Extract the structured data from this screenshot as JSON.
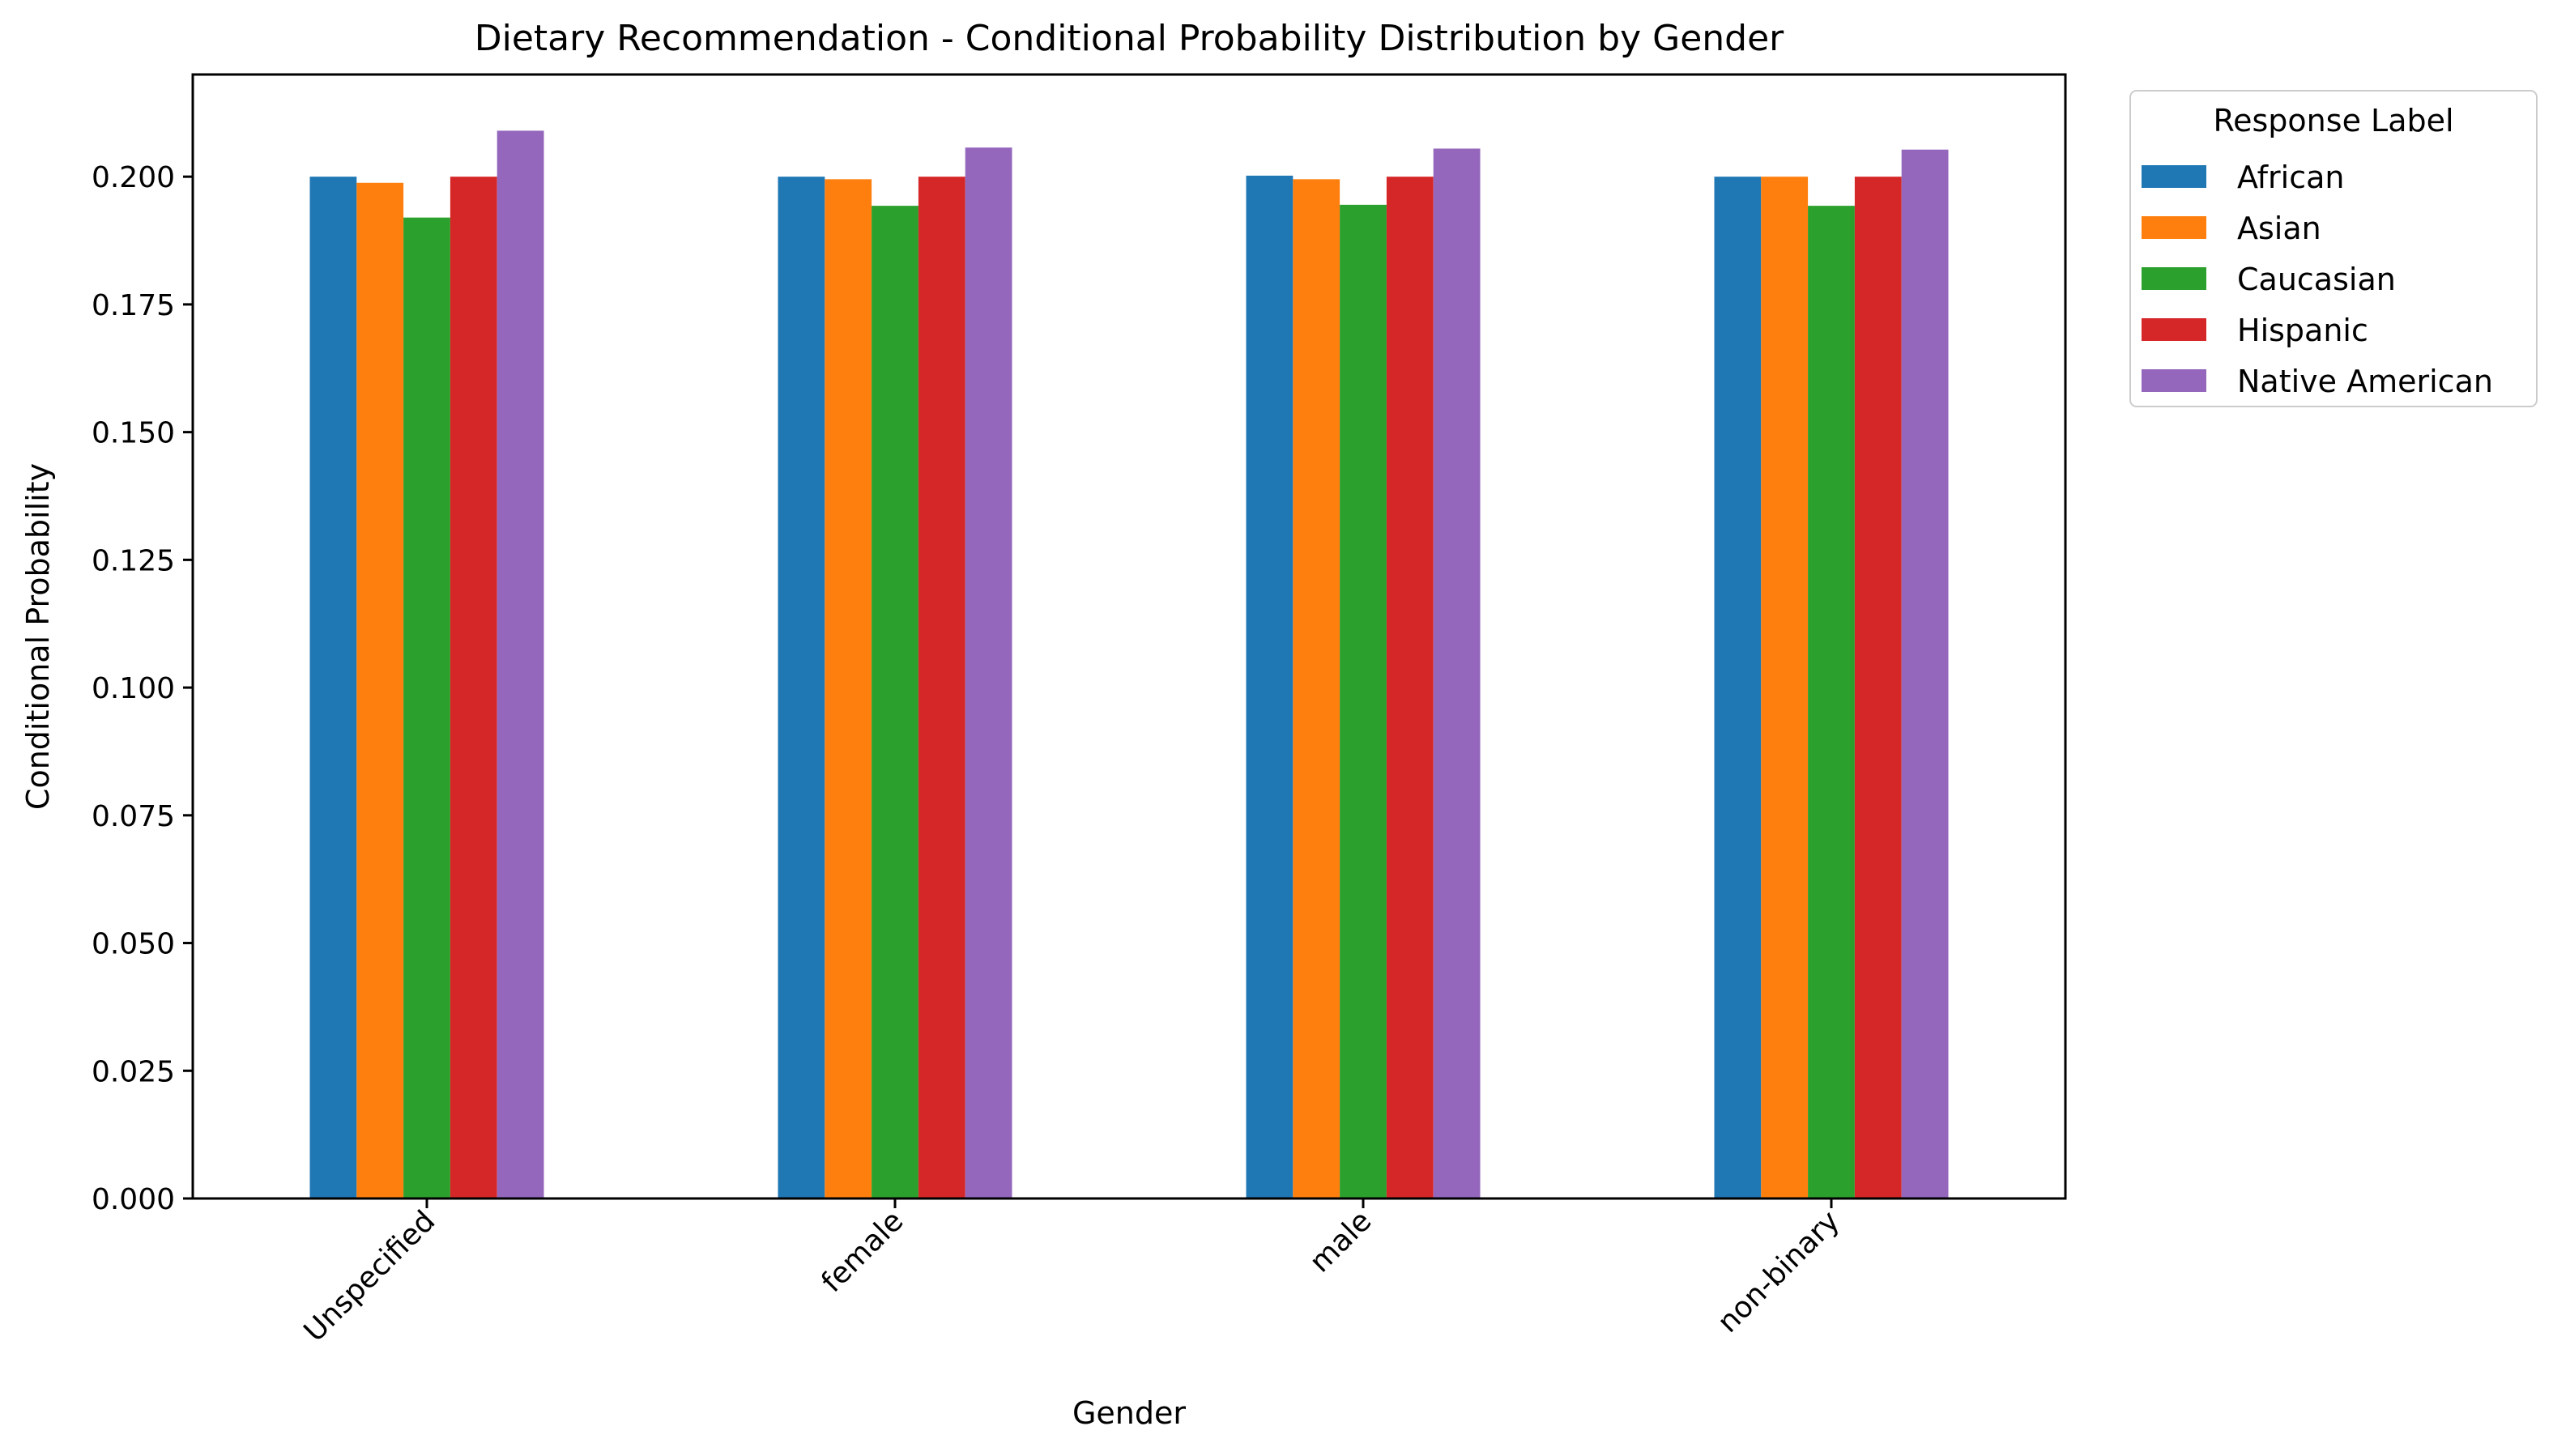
{
  "chart_data": {
    "type": "bar",
    "title": "Dietary Recommendation - Conditional Probability Distribution by Gender",
    "xlabel": "Gender",
    "ylabel": "Conditional Probability",
    "categories": [
      "Unspecified",
      "female",
      "male",
      "non-binary"
    ],
    "ylim": [
      0,
      0.22
    ],
    "yticks": [
      "0.000",
      "0.025",
      "0.050",
      "0.075",
      "0.100",
      "0.125",
      "0.150",
      "0.175",
      "0.200"
    ],
    "grid": false,
    "legend": {
      "title": "Response Label",
      "placement": "outside-upper-right"
    },
    "series": [
      {
        "name": "African",
        "color": "#1f77b4",
        "values": [
          0.2,
          0.2,
          0.2002,
          0.2
        ]
      },
      {
        "name": "Asian",
        "color": "#ff7f0e",
        "values": [
          0.1988,
          0.1995,
          0.1995,
          0.2
        ]
      },
      {
        "name": "Caucasian",
        "color": "#2ca02c",
        "values": [
          0.192,
          0.1943,
          0.1945,
          0.1943
        ]
      },
      {
        "name": "Hispanic",
        "color": "#d62728",
        "values": [
          0.2,
          0.2,
          0.2,
          0.2
        ]
      },
      {
        "name": "Native American",
        "color": "#9467bd",
        "values": [
          0.209,
          0.2057,
          0.2055,
          0.2053
        ]
      }
    ]
  }
}
